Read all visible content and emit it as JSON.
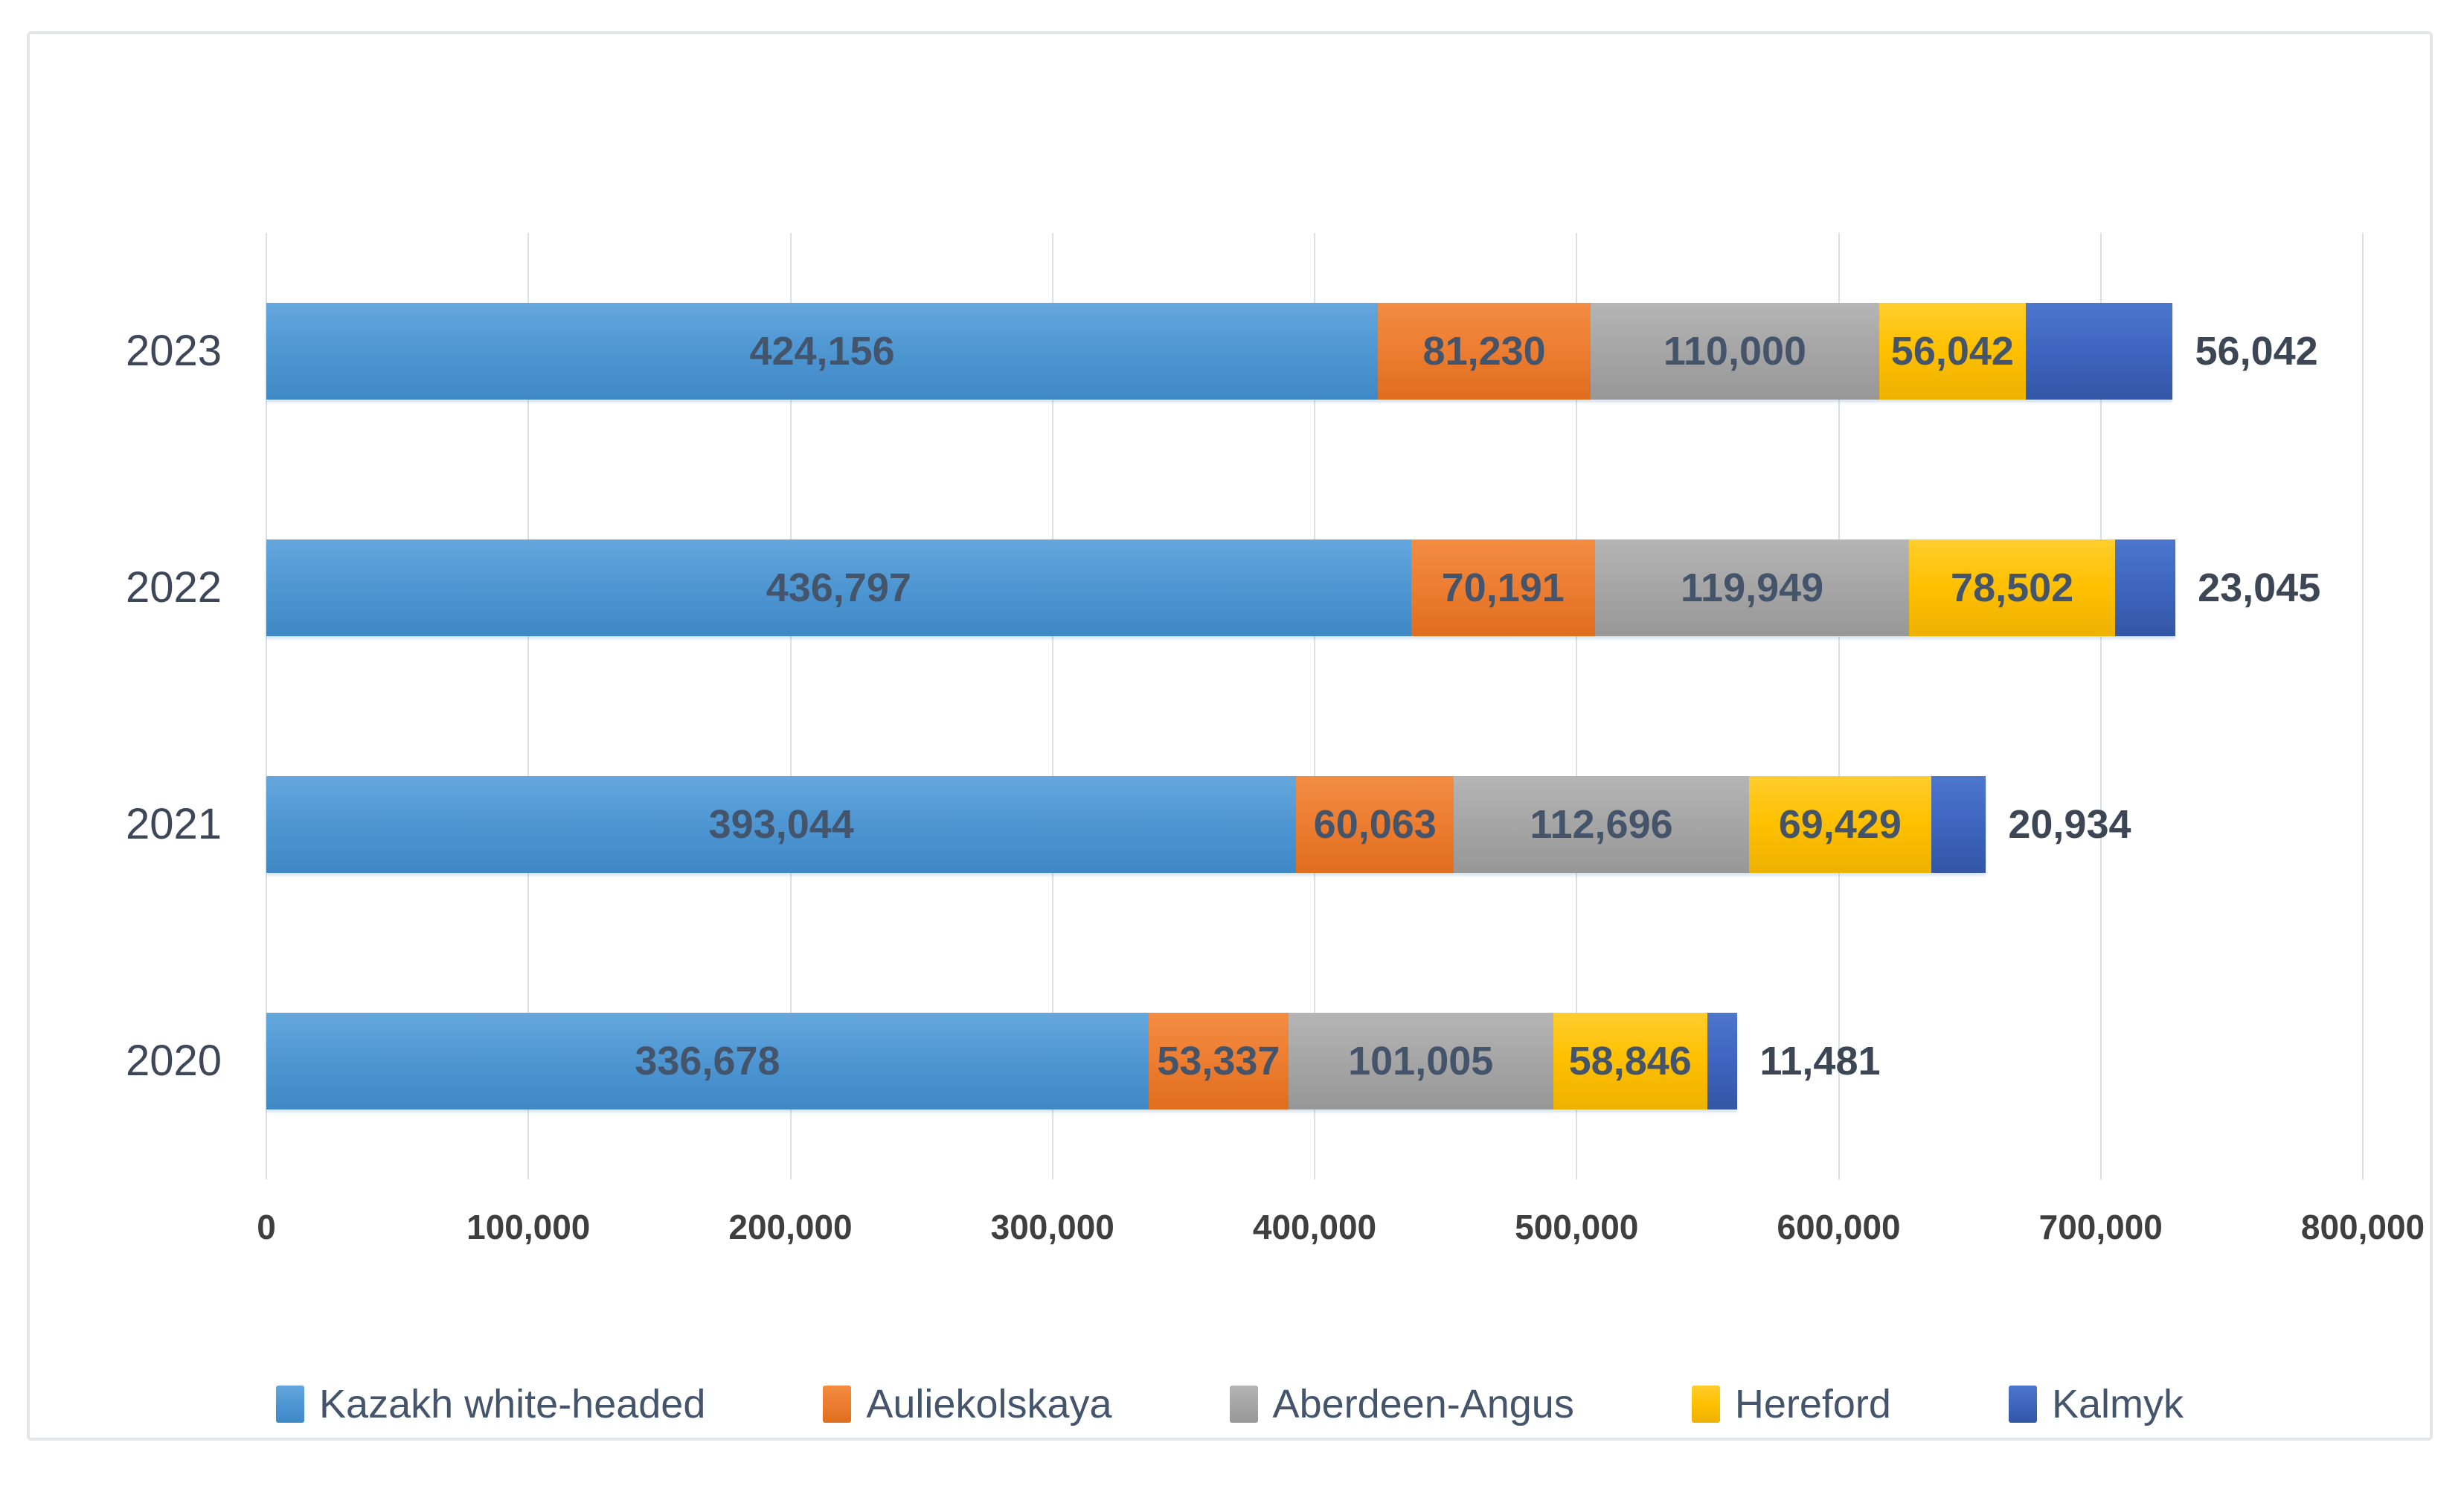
{
  "chart_data": {
    "type": "bar",
    "orientation": "horizontal",
    "stacked": true,
    "title": "",
    "xlabel": "",
    "ylabel": "",
    "grid": true,
    "legend_position": "bottom",
    "xlim": [
      0,
      800000
    ],
    "x_ticks": [
      "0",
      "100,000",
      "200,000",
      "300,000",
      "400,000",
      "500,000",
      "600,000",
      "700,000",
      "800,000"
    ],
    "categories": [
      "2023",
      "2022",
      "2021",
      "2020"
    ],
    "series": [
      {
        "name": "Kazakh white-headed",
        "key": "kazakh-white-headed",
        "color": "#4e97d3",
        "values": [
          424156,
          436797,
          393044,
          336678
        ]
      },
      {
        "name": "Auliekolskaya",
        "key": "auliekolskaya",
        "color": "#ed7d31",
        "values": [
          81230,
          70191,
          60063,
          53337
        ]
      },
      {
        "name": "Aberdeen-Angus",
        "key": "aberdeen-angus",
        "color": "#a5a5a5",
        "values": [
          110000,
          119949,
          112696,
          101005
        ]
      },
      {
        "name": "Hereford",
        "key": "hereford",
        "color": "#ffc000",
        "values": [
          56042,
          78502,
          69429,
          58846
        ]
      },
      {
        "name": "Kalmyk",
        "key": "kalmyk",
        "color": "#3e66c0",
        "values": [
          56042,
          23045,
          20934,
          11481
        ]
      }
    ],
    "data_labels": [
      [
        "424,156",
        "81,230",
        "110,000",
        "56,042",
        "56,042"
      ],
      [
        "436,797",
        "70,191",
        "119,949",
        "78,502",
        "23,045"
      ],
      [
        "393,044",
        "60,063",
        "112,696",
        "69,429",
        "20,934"
      ],
      [
        "336,678",
        "53,337",
        "101,005",
        "58,846",
        "11,481"
      ]
    ],
    "outside_label_series": "Kalmyk",
    "totals": [
      727470,
      728484,
      656166,
      561347
    ]
  },
  "colors": {
    "grid": "#d9dee7",
    "frame_border": "#e2e6eb",
    "data_label_text": "#44546a",
    "axis_text": "#3f3f3f",
    "category_text": "#3d4757",
    "legend_text": "#44546a",
    "background": "#ffffff"
  }
}
